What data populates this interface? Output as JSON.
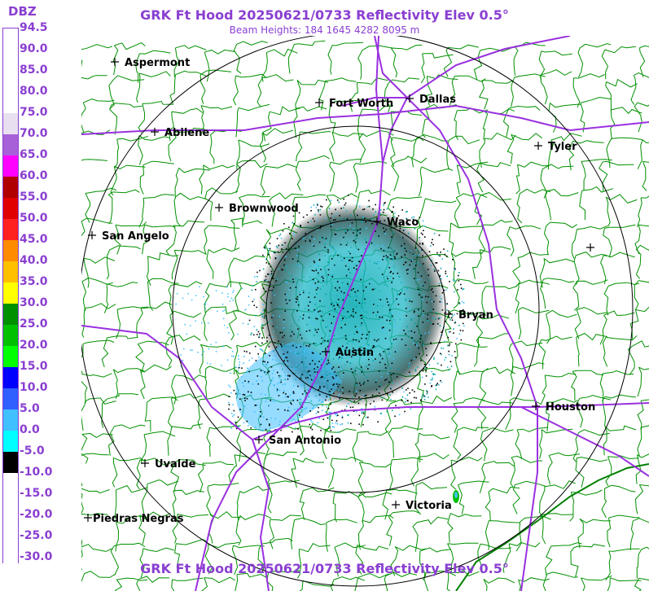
{
  "header": {
    "title": "GRK Ft Hood 20250621/0733 Reflectivity Elev 0.5°",
    "subtitle": "Beam Heights: 184 1645 4282 8095 m",
    "footer_title": "GRK Ft Hood 20250621/0733 Reflectivity Elev 0.5°"
  },
  "legend": {
    "unit": "DBZ",
    "labels": [
      "94.5",
      "90.0",
      "85.0",
      "80.0",
      "75.0",
      "70.0",
      "65.0",
      "60.0",
      "55.0",
      "50.0",
      "45.0",
      "40.0",
      "35.0",
      "30.0",
      "25.0",
      "20.0",
      "15.0",
      "10.0",
      "5.0",
      "0.0",
      "-5.0",
      "-10.0",
      "-15.0",
      "-20.0",
      "-25.0",
      "-30.0"
    ],
    "colors": {
      "94.5": "#ffffff",
      "75.0": "#e8e0f0",
      "70.0": "#a860d8",
      "65.0": "#ff00ff",
      "60.0": "#b00000",
      "55.0": "#e00000",
      "50.0": "#ff2020",
      "45.0": "#ff8c00",
      "40.0": "#ffc000",
      "35.0": "#ffff00",
      "30.0": "#009000",
      "25.0": "#00c000",
      "20.0": "#00ff00",
      "15.0": "#0000ff",
      "10.0": "#3060ff",
      "5.0": "#40c0ff",
      "0.0": "#00ffff",
      "-5.0": "#000000",
      "-10.0": "#ffffff"
    }
  },
  "map": {
    "radar_site": "GRK Ft Hood",
    "cities": [
      {
        "name": "Aspermont"
      },
      {
        "name": "Fort Worth"
      },
      {
        "name": "Dallas"
      },
      {
        "name": "Abilene"
      },
      {
        "name": "Tyler"
      },
      {
        "name": "Brownwood"
      },
      {
        "name": "Waco"
      },
      {
        "name": "San Angelo"
      },
      {
        "name": "Bryan"
      },
      {
        "name": "Austin"
      },
      {
        "name": "Houston"
      },
      {
        "name": "San Antonio"
      },
      {
        "name": "Uvalde"
      },
      {
        "name": "Victoria"
      },
      {
        "name": "Piedras Negras"
      },
      {
        "name": ""
      }
    ],
    "colors": {
      "county_lines": "#009000",
      "highways": "#9a30e0",
      "range_rings": "#000000",
      "echo_light": "#40c0ff",
      "echo_core": "#00a0a0",
      "echo_noise": "#000000"
    }
  }
}
